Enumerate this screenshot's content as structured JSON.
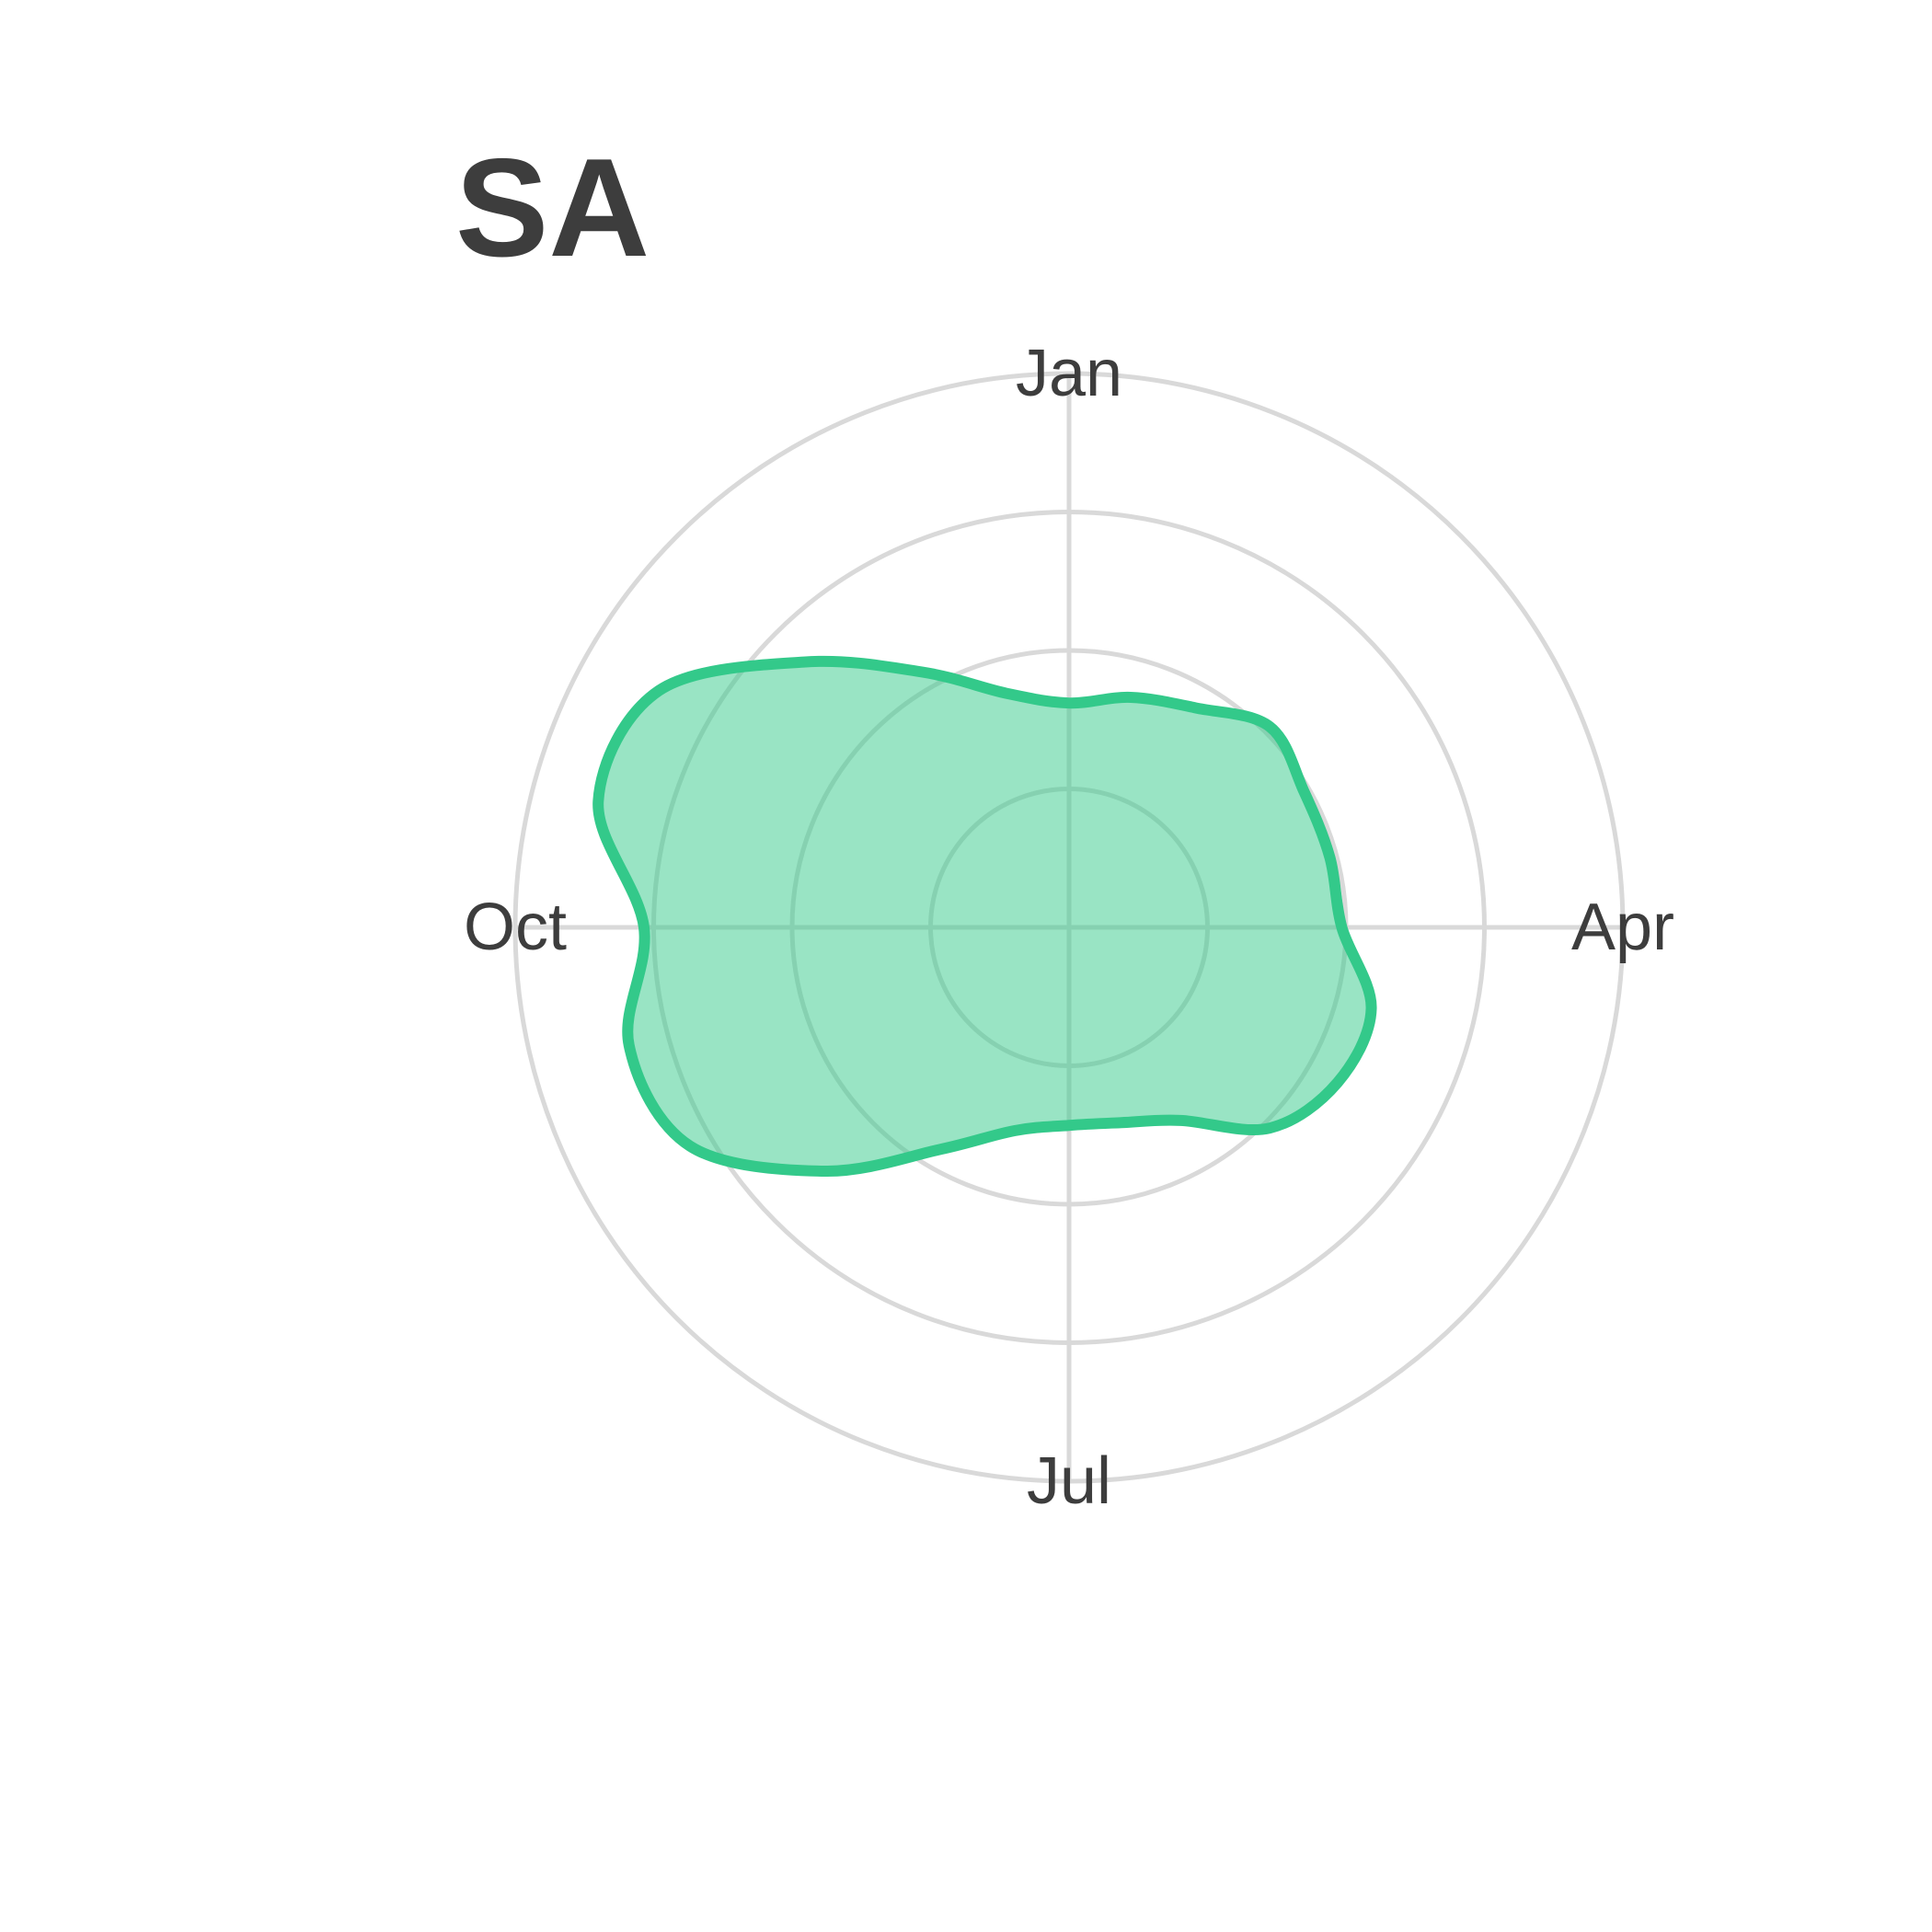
{
  "chart_data": {
    "type": "radar",
    "title": "SA",
    "month_labels": [
      "Jan",
      "Apr",
      "Jul",
      "Oct"
    ],
    "radial_range": [
      0,
      4
    ],
    "radial_gridlines": [
      1,
      2,
      3,
      4
    ],
    "grid": true,
    "legend": "none",
    "series": [
      {
        "points": [
          {
            "angle_deg": 0,
            "r": 1.62
          },
          {
            "angle_deg": 15,
            "r": 1.72
          },
          {
            "angle_deg": 30,
            "r": 1.83
          },
          {
            "angle_deg": 45,
            "r": 2.05
          },
          {
            "angle_deg": 60,
            "r": 1.96
          },
          {
            "angle_deg": 75,
            "r": 1.95
          },
          {
            "angle_deg": 90,
            "r": 1.97
          },
          {
            "angle_deg": 105,
            "r": 2.26
          },
          {
            "angle_deg": 120,
            "r": 2.24
          },
          {
            "angle_deg": 135,
            "r": 2.05
          },
          {
            "angle_deg": 150,
            "r": 1.61
          },
          {
            "angle_deg": 165,
            "r": 1.46
          },
          {
            "angle_deg": 180,
            "r": 1.43
          },
          {
            "angle_deg": 195,
            "r": 1.52
          },
          {
            "angle_deg": 210,
            "r": 1.85
          },
          {
            "angle_deg": 225,
            "r": 2.49
          },
          {
            "angle_deg": 240,
            "r": 3.16
          },
          {
            "angle_deg": 255,
            "r": 3.29
          },
          {
            "angle_deg": 270,
            "r": 3.07
          },
          {
            "angle_deg": 285,
            "r": 3.52
          },
          {
            "angle_deg": 300,
            "r": 3.42
          },
          {
            "angle_deg": 315,
            "r": 2.71
          },
          {
            "angle_deg": 330,
            "r": 2.13
          },
          {
            "angle_deg": 345,
            "r": 1.75
          }
        ]
      }
    ]
  },
  "colors": {
    "background": "#ffffff",
    "grid": "#d9d9d9",
    "text": "#3d3d3d",
    "series_fill": "#33c98a",
    "series_fill_opacity": 0.5,
    "series_stroke": "#33c98a"
  }
}
